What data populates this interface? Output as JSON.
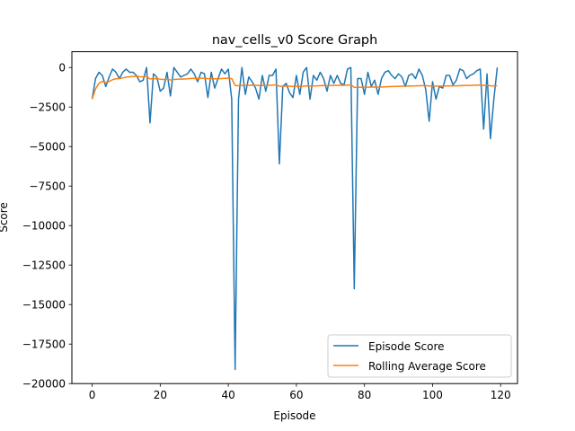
{
  "chart_data": {
    "type": "line",
    "title": "nav_cells_v0 Score Graph",
    "xlabel": "Episode",
    "ylabel": "Score",
    "xlim": [
      -5.95,
      124.95
    ],
    "ylim": [
      -20000,
      1000
    ],
    "xticks": [
      0,
      20,
      40,
      60,
      80,
      100,
      120
    ],
    "yticks": [
      0,
      -2500,
      -5000,
      -7500,
      -10000,
      -12500,
      -15000,
      -17500,
      -20000
    ],
    "xtick_labels": [
      "0",
      "20",
      "40",
      "60",
      "80",
      "100",
      "120"
    ],
    "ytick_labels": [
      "0",
      "−2500",
      "−5000",
      "−7500",
      "−10000",
      "−12500",
      "−15000",
      "−17500",
      "−20000"
    ],
    "grid": false,
    "legend_position": "lower right",
    "series": [
      {
        "name": "Episode Score",
        "color": "#1f77b4",
        "values": [
          -2000,
          -700,
          -300,
          -500,
          -1200,
          -600,
          -100,
          -300,
          -700,
          -300,
          -100,
          -300,
          -300,
          -500,
          -900,
          -800,
          0,
          -3500,
          -400,
          -600,
          -1500,
          -1300,
          -300,
          -1800,
          0,
          -300,
          -600,
          -500,
          -400,
          -100,
          -400,
          -900,
          -300,
          -400,
          -1900,
          -300,
          -1300,
          -700,
          -100,
          -400,
          -100,
          -2000,
          -19100,
          -2000,
          0,
          -1700,
          -600,
          -900,
          -1300,
          -2000,
          -500,
          -1500,
          -500,
          -500,
          -100,
          -6100,
          -1200,
          -1000,
          -1600,
          -1900,
          -500,
          -1700,
          -300,
          0,
          -2000,
          -500,
          -800,
          -300,
          -700,
          -1500,
          -500,
          -1000,
          -500,
          -1000,
          -1100,
          -100,
          0,
          -14000,
          -700,
          -700,
          -1700,
          -300,
          -1200,
          -800,
          -1700,
          -700,
          -300,
          -200,
          -500,
          -700,
          -400,
          -600,
          -1200,
          -500,
          -400,
          -700,
          -100,
          -500,
          -1400,
          -3400,
          -900,
          -2000,
          -1200,
          -1300,
          -500,
          -500,
          -1100,
          -800,
          -100,
          -200,
          -700,
          -500,
          -400,
          -200,
          -100,
          -3900,
          -400,
          -4500,
          -2000,
          0
        ]
      },
      {
        "name": "Rolling Average Score",
        "color": "#ff7f0e",
        "values": [
          -2000,
          -1350,
          -1000,
          -875,
          -940,
          -883,
          -771,
          -712,
          -700,
          -660,
          -609,
          -583,
          -562,
          -557,
          -580,
          -594,
          -560,
          -723,
          -705,
          -700,
          -738,
          -764,
          -744,
          -788,
          -757,
          -739,
          -734,
          -725,
          -714,
          -693,
          -684,
          -691,
          -680,
          -672,
          -706,
          -695,
          -712,
          -712,
          -696,
          -687,
          -673,
          -704,
          -1132,
          -1152,
          -1126,
          -1138,
          -1126,
          -1121,
          -1125,
          -1142,
          -1129,
          -1137,
          -1125,
          -1113,
          -1094,
          -1183,
          -1182,
          -1177,
          -1185,
          -1197,
          -1185,
          -1194,
          -1180,
          -1161,
          -1174,
          -1164,
          -1158,
          -1145,
          -1139,
          -1144,
          -1135,
          -1133,
          -1124,
          -1123,
          -1123,
          -1109,
          -1095,
          -1257,
          -1250,
          -1244,
          -1249,
          -1239,
          -1238,
          -1233,
          -1238,
          -1233,
          -1222,
          -1210,
          -1203,
          -1198,
          -1189,
          -1183,
          -1184,
          -1176,
          -1167,
          -1162,
          -1151,
          -1145,
          -1146,
          -1168,
          -1165,
          -1173,
          -1173,
          -1174,
          -1167,
          -1161,
          -1161,
          -1158,
          -1148,
          -1139,
          -1135,
          -1130,
          -1123,
          -1115,
          -1106,
          -1131,
          -1125,
          -1155,
          -1162,
          -1152
        ]
      }
    ]
  }
}
